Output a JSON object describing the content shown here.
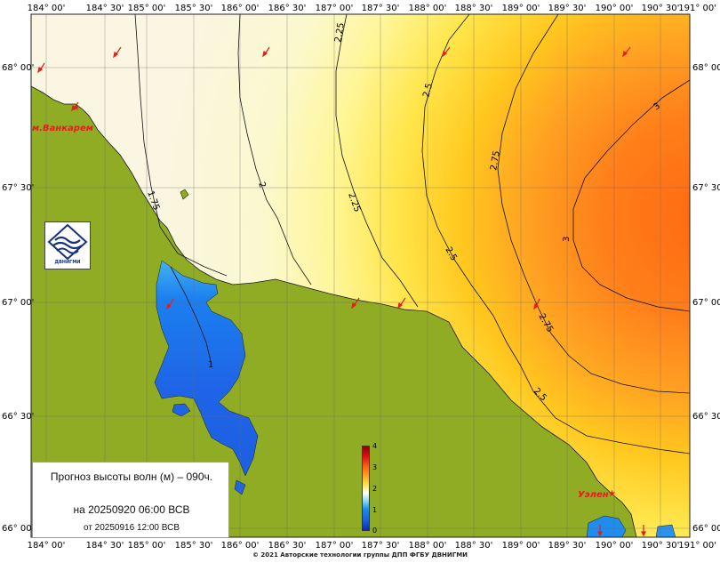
{
  "map": {
    "longitude_labels": [
      "184° 00'",
      "184° 30'",
      "185° 00'",
      "185° 30'",
      "186° 00'",
      "186° 30'",
      "187° 00'",
      "187° 30'",
      "188° 00'",
      "188° 30'",
      "189° 00'",
      "189° 30'",
      "190° 00'",
      "190° 30'",
      "191° 00'"
    ],
    "latitude_labels": [
      "68° 00'",
      "67° 30'",
      "67° 00'",
      "66° 30'",
      "66° 00'"
    ],
    "contour_labels": [
      "1.75",
      "2",
      "2.25",
      "2.25",
      "2.5",
      "2.5",
      "2.5",
      "2.75",
      "2.75",
      "3",
      "3",
      "1"
    ],
    "places": [
      "м.Ванкарем",
      "Уэлен"
    ],
    "colors": {
      "land": "#8fac24",
      "water_shallow": "#faf7e0",
      "water_peak": "#ff7518",
      "lagoon": "#1f6fe8"
    }
  },
  "info": {
    "title": "Прогноз высоты волн (м) – 090ч.",
    "date": "на 20250920 06:00 ВСВ",
    "issued": "от 20250916 12:00 ВСВ"
  },
  "colorbar": {
    "ticks": [
      "4",
      "3",
      "2",
      "1",
      "0"
    ],
    "min": 0,
    "max": 4
  },
  "logo": {
    "text": "ДВНИГМИ",
    "icon": "dvnigmi-logo-icon"
  },
  "copyright": "© 2021 Авторские технологии группы ДПП ФГБУ ДВНИГМИ"
}
